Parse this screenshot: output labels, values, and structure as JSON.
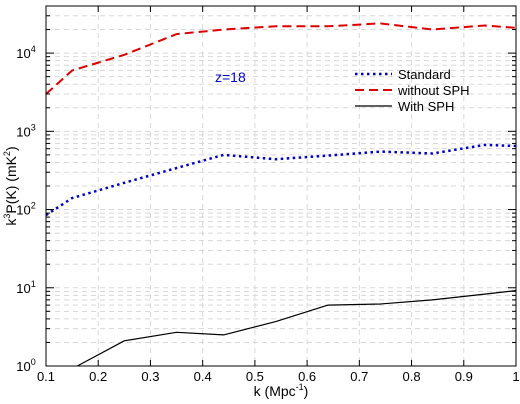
{
  "chart_data": {
    "type": "line",
    "xlabel": "k (Mpc",
    "xlabel_sup": "-1",
    "xlabel_end": ")",
    "ylabel_parts": [
      "k",
      "3",
      "P(K) (mK",
      "2",
      ")"
    ],
    "xlim": [
      0.1,
      1.0
    ],
    "ylim": [
      1,
      40000
    ],
    "yscale": "log",
    "grid": true,
    "legend_placement": "top-right",
    "annotation": {
      "text": "z=18",
      "color": "#0000cc"
    },
    "x_ticks": [
      {
        "value": 0.1,
        "label": "0.1"
      },
      {
        "value": 0.2,
        "label": "0.2"
      },
      {
        "value": 0.3,
        "label": "0.3"
      },
      {
        "value": 0.4,
        "label": "0.4"
      },
      {
        "value": 0.5,
        "label": "0.5"
      },
      {
        "value": 0.6,
        "label": "0.6"
      },
      {
        "value": 0.7,
        "label": "0.7"
      },
      {
        "value": 0.8,
        "label": "0.8"
      },
      {
        "value": 0.9,
        "label": "0.9"
      },
      {
        "value": 1.0,
        "label": "1"
      }
    ],
    "y_ticks": [
      {
        "value": 1,
        "base": "10",
        "exp": "0"
      },
      {
        "value": 10,
        "base": "10",
        "exp": "1"
      },
      {
        "value": 100,
        "base": "10",
        "exp": "2"
      },
      {
        "value": 1000,
        "base": "10",
        "exp": "3"
      },
      {
        "value": 10000,
        "base": "10",
        "exp": "4"
      }
    ],
    "series": [
      {
        "name": "Standard",
        "color": "#0000cc",
        "dash": "dotted",
        "x": [
          0.1,
          0.15,
          0.25,
          0.35,
          0.44,
          0.54,
          0.64,
          0.74,
          0.84,
          0.94,
          1.0
        ],
        "y": [
          85,
          140,
          220,
          340,
          500,
          440,
          490,
          550,
          520,
          670,
          650
        ]
      },
      {
        "name": "without SPH",
        "color": "#dd0000",
        "dash": "dashed",
        "x": [
          0.1,
          0.15,
          0.25,
          0.35,
          0.44,
          0.54,
          0.64,
          0.74,
          0.84,
          0.94,
          1.0
        ],
        "y": [
          3000,
          6000,
          9500,
          17500,
          20000,
          22000,
          22000,
          24000,
          20000,
          22500,
          21000
        ]
      },
      {
        "name": "With SPH",
        "color": "#000000",
        "dash": "solid",
        "x": [
          0.16,
          0.25,
          0.35,
          0.44,
          0.54,
          0.64,
          0.74,
          0.84,
          0.94,
          1.0
        ],
        "y": [
          1.0,
          2.1,
          2.7,
          2.5,
          3.7,
          6.0,
          6.2,
          7.0,
          8.3,
          9.2
        ]
      }
    ]
  }
}
